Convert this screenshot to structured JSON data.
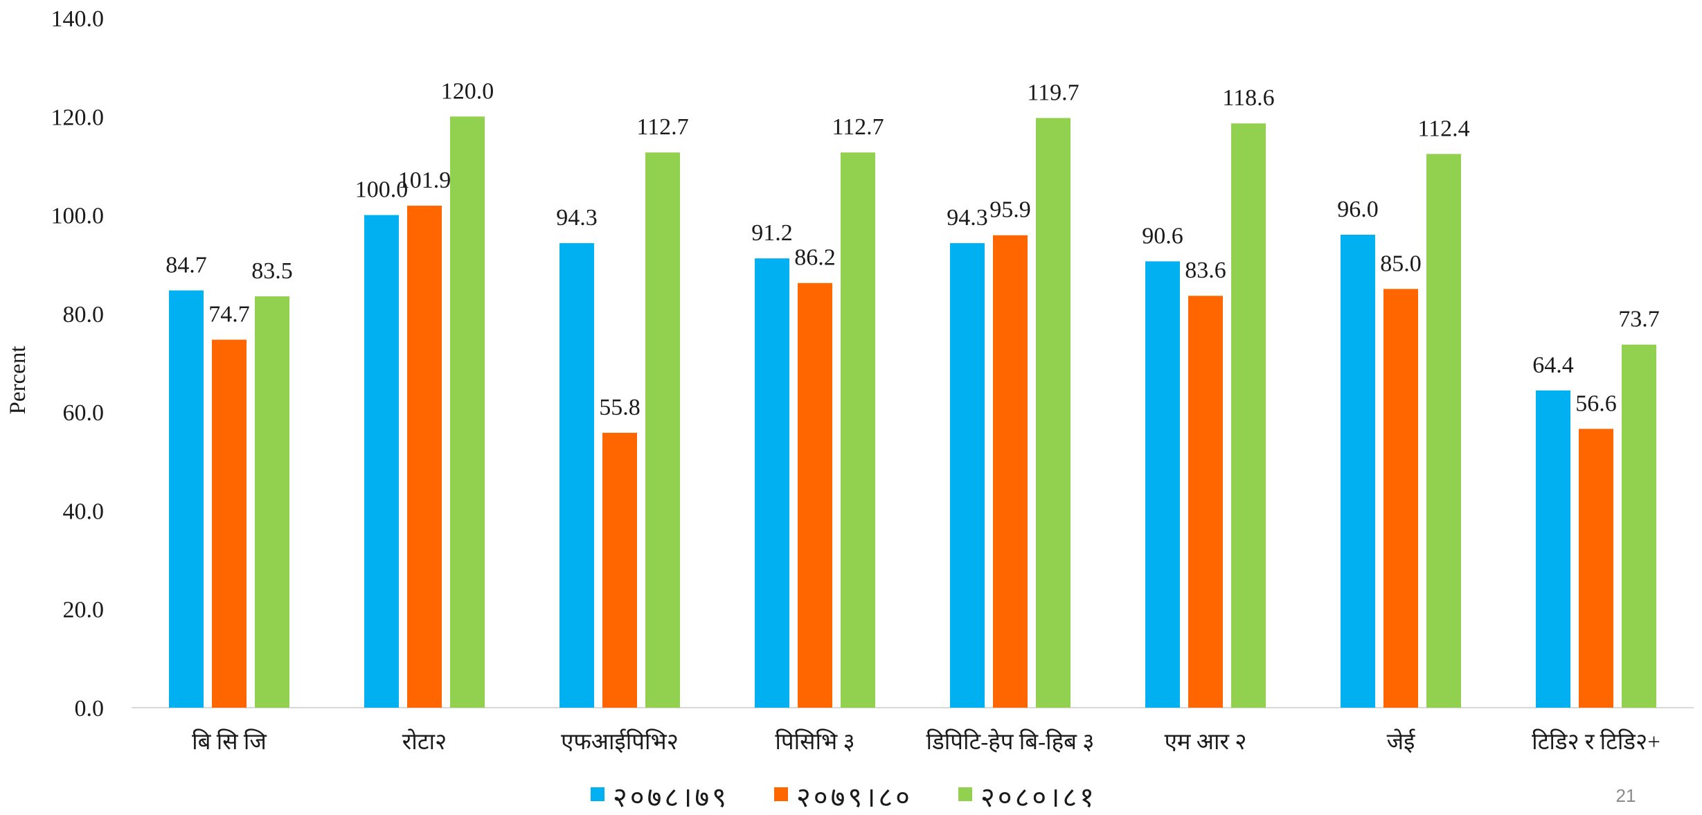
{
  "chart_data": {
    "type": "bar",
    "ylabel": "Percent",
    "ylim": [
      0,
      140
    ],
    "yticks": [
      "0.0",
      "20.0",
      "40.0",
      "60.0",
      "80.0",
      "100.0",
      "120.0",
      "140.0"
    ],
    "grid": false,
    "legend_position": "bottom",
    "categories": [
      "बि सि जि",
      "रोटा२",
      "एफआईपिभि२",
      "पिसिभि ३",
      "डिपिटि-हेप बि-हिब ३",
      "एम आर २",
      "जेई",
      "टिडि२ र टिडि२+"
    ],
    "series": [
      {
        "name": "२०७८।७९",
        "color": "#00B0F0",
        "values": [
          84.7,
          100.0,
          94.3,
          91.2,
          94.3,
          90.6,
          96.0,
          64.4
        ],
        "labels": [
          "84.7",
          "100.0",
          "94.3",
          "91.2",
          "94.3",
          "90.6",
          "96.0",
          "64.4"
        ]
      },
      {
        "name": "२०७९।८०",
        "color": "#FF6600",
        "values": [
          74.7,
          101.9,
          55.8,
          86.2,
          95.9,
          83.6,
          85.0,
          56.6
        ],
        "labels": [
          "74.7",
          "101.9",
          "55.8",
          "86.2",
          "95.9",
          "83.6",
          "85.0",
          "56.6"
        ]
      },
      {
        "name": "२०८०।८१",
        "color": "#92D050",
        "values": [
          83.5,
          120.0,
          112.7,
          112.7,
          119.7,
          118.6,
          112.4,
          73.7
        ],
        "labels": [
          "83.5",
          "120.0",
          "112.7",
          "112.7",
          "119.7",
          "118.6",
          "112.4",
          "73.7"
        ]
      }
    ]
  },
  "page_number": "21"
}
